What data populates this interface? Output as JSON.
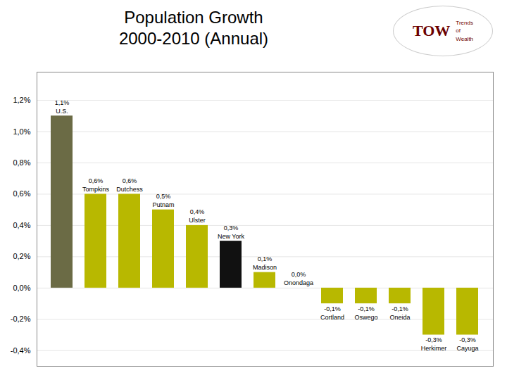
{
  "chart_data": {
    "type": "bar",
    "title": "Population Growth\n2000-2010 (Annual)",
    "categories": [
      "U.S.",
      "Tompkins",
      "Dutchess",
      "Putnam",
      "Ulster",
      "New York",
      "Madison",
      "Onondaga",
      "Cortland",
      "Oswego",
      "Oneida",
      "Herkimer",
      "Cayuga"
    ],
    "values": [
      0.011,
      0.006,
      0.006,
      0.005,
      0.004,
      0.003,
      0.001,
      0.0,
      -0.001,
      -0.001,
      -0.001,
      -0.003,
      -0.003
    ],
    "value_labels": [
      "1,1%",
      "0,6%",
      "0,6%",
      "0,5%",
      "0,4%",
      "0,3%",
      "0,1%",
      "0,0%",
      "-0,1%",
      "-0,1%",
      "-0,1%",
      "-0,3%",
      "-0,3%"
    ],
    "colors": [
      "#6b6b45",
      "#b8b800",
      "#b8b800",
      "#b8b800",
      "#b8b800",
      "#111111",
      "#b8b800",
      "#b8b800",
      "#b8b800",
      "#b8b800",
      "#b8b800",
      "#b8b800",
      "#b8b800"
    ],
    "ylim": [
      -0.005,
      0.0138
    ],
    "yticks": [
      {
        "value": -0.004,
        "label": "-0,4%"
      },
      {
        "value": -0.002,
        "label": "-0,2%"
      },
      {
        "value": 0.0,
        "label": "0,0%"
      },
      {
        "value": 0.002,
        "label": "0,2%"
      },
      {
        "value": 0.004,
        "label": "0,4%"
      },
      {
        "value": 0.006,
        "label": "0,6%"
      },
      {
        "value": 0.008,
        "label": "0,8%"
      },
      {
        "value": 0.01,
        "label": "1,0%"
      },
      {
        "value": 0.012,
        "label": "1,2%"
      }
    ],
    "grid": true,
    "data_labels": true,
    "tick_labels": "y",
    "annotations": [
      "TOW",
      "Trends",
      "of",
      "Wealth"
    ]
  }
}
